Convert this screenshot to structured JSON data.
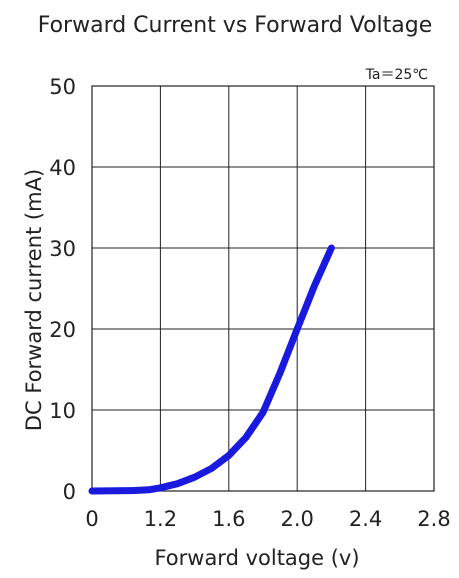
{
  "chart_data": {
    "type": "line",
    "title": "Forward Current vs Forward Voltage",
    "annotation": "Ta＝25℃",
    "xlabel": "Forward voltage (v)",
    "ylabel": "DC Forward current (mA)",
    "xlim": [
      0,
      2.8
    ],
    "ylim": [
      0,
      50
    ],
    "x_ticks": [
      "0",
      "1.2",
      "1.6",
      "2.0",
      "2.4",
      "2.8"
    ],
    "y_ticks": [
      "0",
      "10",
      "20",
      "30",
      "40",
      "50"
    ],
    "grid": true,
    "line_color": "#1a1adf",
    "series": [
      {
        "x": [
          0.0,
          0.7,
          1.0,
          1.2,
          1.3,
          1.4,
          1.5,
          1.6,
          1.7,
          1.8,
          1.9,
          2.0,
          2.1,
          2.2
        ],
        "y": [
          0.0,
          0.05,
          0.15,
          0.4,
          0.9,
          1.7,
          2.8,
          4.4,
          6.6,
          9.7,
          14.6,
          20.0,
          25.3,
          30.0
        ]
      }
    ]
  }
}
